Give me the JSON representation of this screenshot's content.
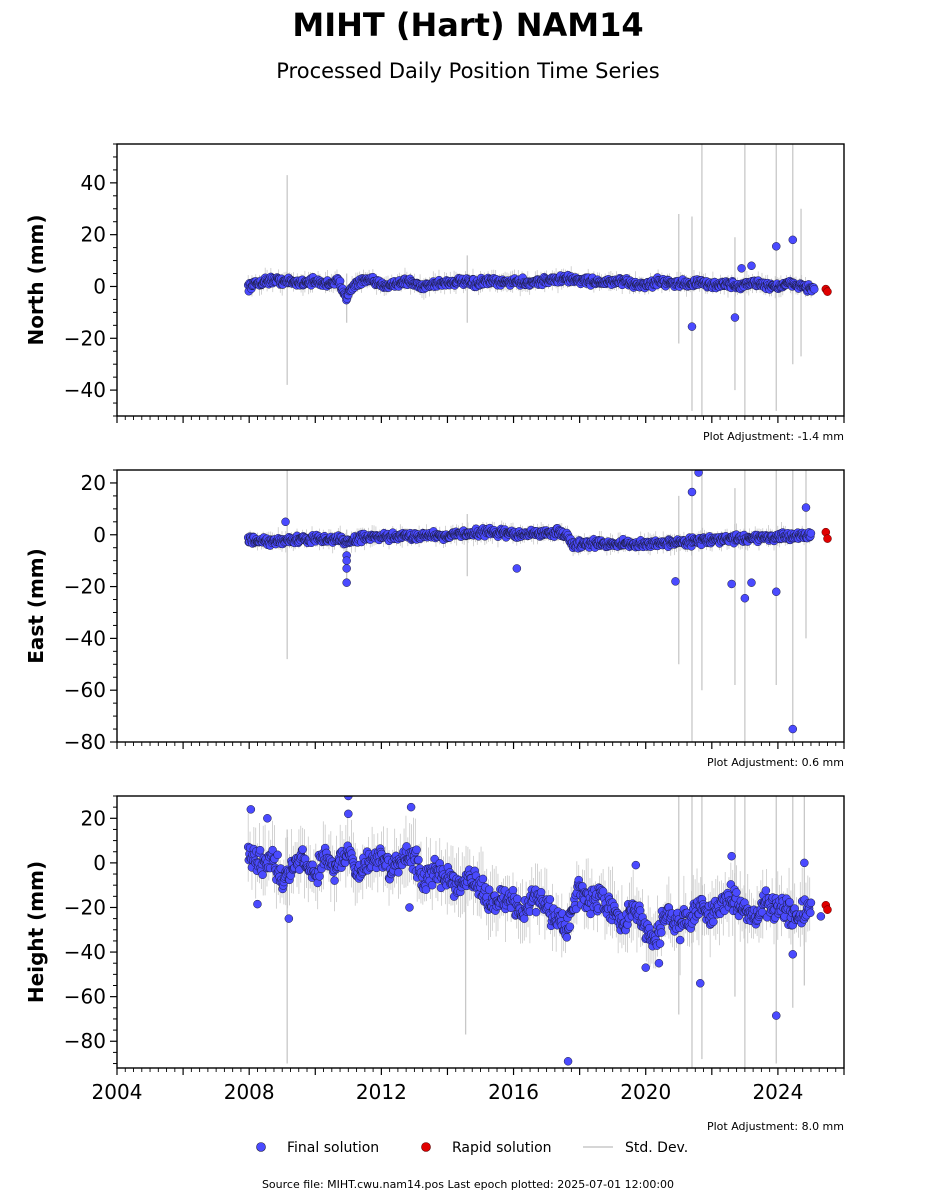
{
  "title": "MIHT (Hart) NAM14",
  "subtitle": "Processed Daily Position Time Series",
  "source_note": "Source file: MIHT.cwu.nam14.pos  Last epoch plotted: 2025-07-01 12:00:00",
  "legend": {
    "final": "Final solution",
    "rapid": "Rapid solution",
    "std": "Std. Dev."
  },
  "colors": {
    "final": "#4a4aff",
    "final_edge": "#1a1a3a",
    "rapid": "#e00000",
    "std": "#c8c8c8"
  },
  "chart_data": [
    {
      "type": "scatter",
      "ylabel": "North (mm)",
      "adjustment": "Plot Adjustment: -1.4 mm",
      "xlim": [
        2004,
        2026
      ],
      "ylim": [
        -50,
        55
      ],
      "yticks": [
        -40,
        -20,
        0,
        20,
        40
      ],
      "xticks": [
        2004,
        2008,
        2012,
        2016,
        2020,
        2024
      ],
      "show_xticklabels": false,
      "final_series": {
        "x": [
          2007.97,
          2008.3,
          2008.7,
          2009.1,
          2009.5,
          2009.9,
          2010.3,
          2010.7,
          2010.95,
          2011.2,
          2011.6,
          2012.0,
          2012.4,
          2012.8,
          2013.2,
          2013.6,
          2014.0,
          2014.4,
          2014.8,
          2015.2,
          2015.6,
          2016.0,
          2016.4,
          2016.8,
          2017.2,
          2017.6,
          2018.0,
          2018.4,
          2018.8,
          2019.2,
          2019.6,
          2020.0,
          2020.4,
          2020.8,
          2021.2,
          2021.6,
          2022.0,
          2022.4,
          2022.8,
          2023.2,
          2023.6,
          2024.0,
          2024.4,
          2024.8,
          2025.1
        ],
        "y": [
          0,
          1.5,
          2.5,
          2,
          1.5,
          2,
          1,
          2,
          -4,
          1,
          2.5,
          0.5,
          1,
          2,
          0,
          1,
          1.5,
          2,
          1,
          2,
          1.5,
          2,
          1.5,
          2,
          2.5,
          3,
          2.5,
          2,
          1.5,
          2,
          1,
          0.5,
          2,
          1.5,
          1,
          1.5,
          0.5,
          1,
          0,
          1.5,
          0.5,
          0,
          1,
          0,
          -1
        ]
      },
      "outliers": {
        "x": [
          2021.4,
          2022.7,
          2023.95,
          2024.45,
          2022.9,
          2023.2
        ],
        "y": [
          -15.5,
          -12,
          15.5,
          18,
          7,
          8
        ]
      },
      "rapid_series": {
        "x": [
          2025.45,
          2025.5
        ],
        "y": [
          -1,
          -2
        ]
      },
      "std_bars": [
        {
          "x": 2009.15,
          "lo": -38,
          "hi": 43
        },
        {
          "x": 2010.95,
          "lo": -14,
          "hi": 5
        },
        {
          "x": 2014.6,
          "lo": -14,
          "hi": 12
        },
        {
          "x": 2021.0,
          "lo": -22,
          "hi": 28
        },
        {
          "x": 2021.4,
          "lo": -48,
          "hi": 27
        },
        {
          "x": 2021.7,
          "lo": -50,
          "hi": 55
        },
        {
          "x": 2022.7,
          "lo": -40,
          "hi": 19
        },
        {
          "x": 2023.0,
          "lo": -50,
          "hi": 55
        },
        {
          "x": 2023.95,
          "lo": -48,
          "hi": 55
        },
        {
          "x": 2024.45,
          "lo": -30,
          "hi": 55
        },
        {
          "x": 2024.7,
          "lo": -27,
          "hi": 30
        }
      ],
      "noise_amp": 1.2
    },
    {
      "type": "scatter",
      "ylabel": "East (mm)",
      "adjustment": "Plot Adjustment: 0.6 mm",
      "xlim": [
        2004,
        2026
      ],
      "ylim": [
        -80,
        25
      ],
      "yticks": [
        -80,
        -60,
        -40,
        -20,
        0,
        20
      ],
      "xticks": [
        2004,
        2008,
        2012,
        2016,
        2020,
        2024
      ],
      "show_xticklabels": false,
      "final_series": {
        "x": [
          2007.97,
          2008.3,
          2008.7,
          2009.1,
          2009.5,
          2009.9,
          2010.3,
          2010.7,
          2011.0,
          2011.4,
          2011.8,
          2012.2,
          2012.6,
          2013.0,
          2013.4,
          2013.8,
          2014.2,
          2014.6,
          2015.0,
          2015.4,
          2015.8,
          2016.2,
          2016.6,
          2017.0,
          2017.4,
          2017.6,
          2017.8,
          2018.2,
          2018.6,
          2019.0,
          2019.4,
          2019.8,
          2020.2,
          2020.6,
          2021.0,
          2021.4,
          2021.8,
          2022.2,
          2022.6,
          2023.0,
          2023.4,
          2023.8,
          2024.2,
          2024.6,
          2025.0
        ],
        "y": [
          -2,
          -2.5,
          -3,
          -2,
          -2,
          -1.5,
          -2,
          -1.5,
          -3,
          -1,
          -1,
          -1,
          -0.5,
          -0.5,
          0,
          -0.5,
          0,
          0.5,
          1,
          1,
          0.5,
          0,
          0.5,
          0.5,
          1,
          0,
          -4,
          -3.5,
          -3.5,
          -3.5,
          -3.5,
          -4,
          -3.5,
          -3,
          -3,
          -2.5,
          -2,
          -2,
          -1.5,
          -1.5,
          -1,
          -1,
          -1,
          -0.5,
          0
        ]
      },
      "outliers": {
        "x": [
          2009.1,
          2010.95,
          2010.95,
          2010.95,
          2010.95,
          2016.1,
          2020.9,
          2021.4,
          2021.6,
          2022.6,
          2023.0,
          2023.2,
          2023.95,
          2024.45,
          2024.85
        ],
        "y": [
          5,
          -8,
          -10,
          -13,
          -18.5,
          -13,
          -18,
          16.5,
          24,
          -19,
          -24.5,
          -18.5,
          -22,
          -75,
          10.5
        ]
      },
      "rapid_series": {
        "x": [
          2025.45,
          2025.5
        ],
        "y": [
          1,
          -1.5
        ]
      },
      "std_bars": [
        {
          "x": 2009.15,
          "lo": -48,
          "hi": 25
        },
        {
          "x": 2010.95,
          "lo": -18,
          "hi": 2
        },
        {
          "x": 2014.6,
          "lo": -16,
          "hi": 8
        },
        {
          "x": 2021.0,
          "lo": -50,
          "hi": 15
        },
        {
          "x": 2021.4,
          "lo": -80,
          "hi": 25
        },
        {
          "x": 2021.7,
          "lo": -60,
          "hi": 25
        },
        {
          "x": 2022.7,
          "lo": -58,
          "hi": 18
        },
        {
          "x": 2023.0,
          "lo": -80,
          "hi": 25
        },
        {
          "x": 2023.95,
          "lo": -58,
          "hi": 25
        },
        {
          "x": 2024.45,
          "lo": -80,
          "hi": 25
        },
        {
          "x": 2024.85,
          "lo": -40,
          "hi": 25
        }
      ],
      "noise_amp": 1.2
    },
    {
      "type": "scatter",
      "ylabel": "Height (mm)",
      "adjustment": "Plot Adjustment: 8.0 mm",
      "xlim": [
        2004,
        2026
      ],
      "ylim": [
        -92,
        30
      ],
      "yticks": [
        -80,
        -60,
        -40,
        -20,
        0,
        20
      ],
      "xticks": [
        2004,
        2008,
        2012,
        2016,
        2020,
        2024
      ],
      "xticklabels": [
        "2004",
        "2008",
        "2012",
        "2016",
        "2020",
        "2024"
      ],
      "show_xticklabels": true,
      "final_series": {
        "x": [
          2007.97,
          2008.3,
          2008.7,
          2009.0,
          2009.3,
          2009.6,
          2010.0,
          2010.3,
          2010.6,
          2011.0,
          2011.3,
          2011.6,
          2012.0,
          2012.3,
          2012.6,
          2013.0,
          2013.3,
          2013.6,
          2014.0,
          2014.3,
          2014.6,
          2015.0,
          2015.3,
          2015.6,
          2016.0,
          2016.3,
          2016.6,
          2017.0,
          2017.3,
          2017.6,
          2018.0,
          2018.3,
          2018.6,
          2019.0,
          2019.3,
          2019.6,
          2020.0,
          2020.3,
          2020.6,
          2021.0,
          2021.3,
          2021.6,
          2022.0,
          2022.3,
          2022.6,
          2023.0,
          2023.3,
          2023.6,
          2024.0,
          2024.3,
          2024.6,
          2025.0
        ],
        "y": [
          5,
          0,
          3,
          -8,
          -3,
          2,
          -5,
          3,
          -2,
          5,
          -6,
          0,
          4,
          -5,
          2,
          4,
          -10,
          -4,
          -6,
          -10,
          -5,
          -12,
          -20,
          -15,
          -18,
          -22,
          -15,
          -20,
          -25,
          -30,
          -12,
          -18,
          -15,
          -22,
          -28,
          -20,
          -30,
          -35,
          -22,
          -28,
          -25,
          -20,
          -22,
          -20,
          -15,
          -20,
          -25,
          -18,
          -20,
          -22,
          -25,
          -20
        ]
      },
      "outliers": {
        "x": [
          2008.05,
          2008.55,
          2008.25,
          2011.0,
          2011.0,
          2012.9,
          2012.85,
          2009.2,
          2017.65,
          2019.7,
          2020.0,
          2020.4,
          2021.65,
          2022.6,
          2023.95,
          2024.45,
          2024.8,
          2025.3
        ],
        "y": [
          24,
          20,
          -18.5,
          30,
          22,
          25,
          -20,
          -25,
          -89,
          -1,
          -47,
          -45,
          -54,
          3,
          -68.5,
          -41,
          0,
          -24
        ]
      },
      "rapid_series": {
        "x": [
          2025.45,
          2025.5
        ],
        "y": [
          -19,
          -21
        ]
      },
      "std_bars": [
        {
          "x": 2009.15,
          "lo": -90,
          "hi": 15
        },
        {
          "x": 2014.55,
          "lo": -77,
          "hi": -10
        },
        {
          "x": 2021.0,
          "lo": -68,
          "hi": 30
        },
        {
          "x": 2021.4,
          "lo": -92,
          "hi": 30
        },
        {
          "x": 2021.7,
          "lo": -88,
          "hi": 30
        },
        {
          "x": 2022.7,
          "lo": -60,
          "hi": 30
        },
        {
          "x": 2023.0,
          "lo": -92,
          "hi": 30
        },
        {
          "x": 2023.95,
          "lo": -90,
          "hi": 30
        },
        {
          "x": 2024.45,
          "lo": -65,
          "hi": 30
        },
        {
          "x": 2024.8,
          "lo": -55,
          "hi": 30
        }
      ],
      "noise_amp": 4.5
    }
  ]
}
